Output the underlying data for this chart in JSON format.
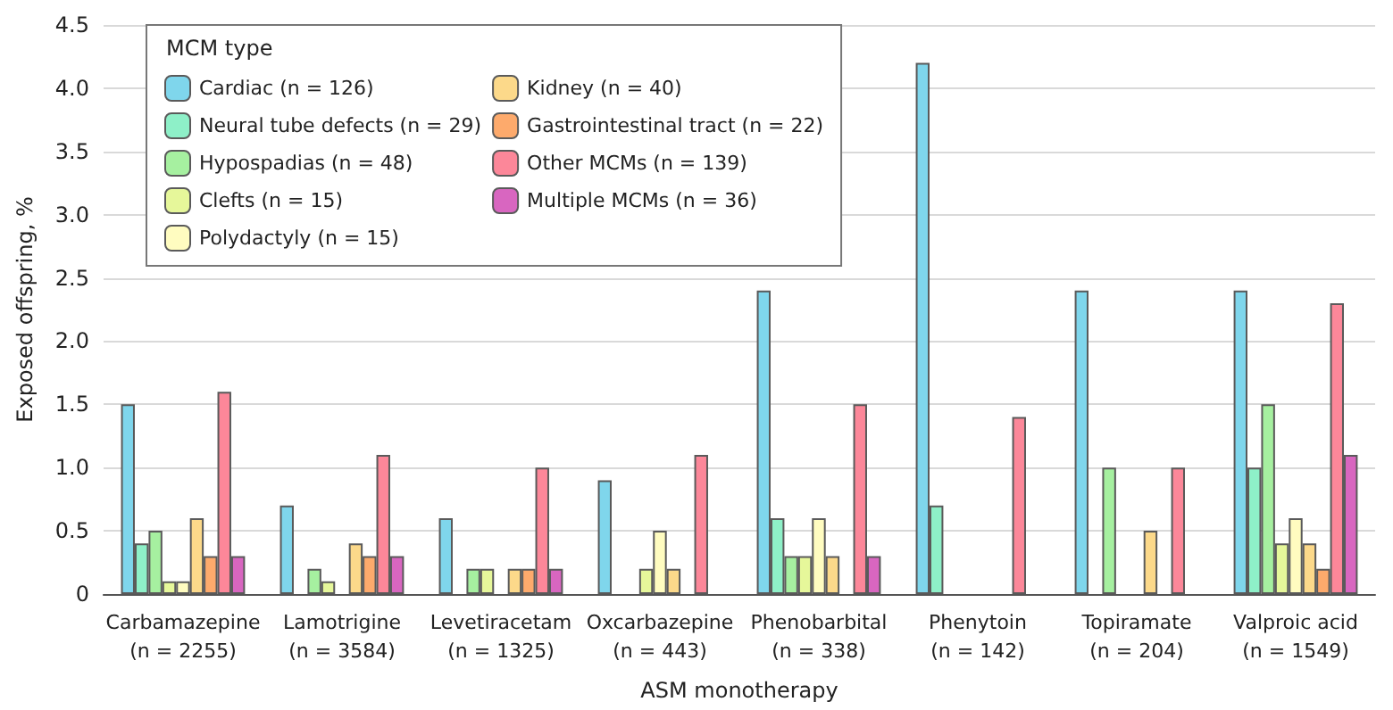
{
  "chart_data": {
    "type": "bar",
    "xlabel": "ASM monotherapy",
    "ylabel": "Exposed offspring, %",
    "legend_title": "MCM type",
    "legend": "top left",
    "grid": "y",
    "categories": [
      "Carbamazepine\n(n = 2255)",
      "Lamotrigine\n(n = 3584)",
      "Levetiracetam\n(n = 1325)",
      "Oxcarbazepine\n(n = 443)",
      "Phenobarbital\n(n = 338)",
      "Phenytoin\n(n = 142)",
      "Topiramate\n(n = 204)",
      "Valproic acid\n(n = 1549)"
    ],
    "ylim": [
      0,
      4.5
    ],
    "yticks": [
      {
        "value": 0,
        "label": "0"
      },
      0.5,
      {
        "value": 1,
        "label": "1.0"
      },
      1.5,
      {
        "value": 2,
        "label": "2.0"
      },
      2.5,
      {
        "value": 3,
        "label": "3.0"
      },
      3.5,
      {
        "value": 4,
        "label": "4.0"
      },
      4.5
    ],
    "series": [
      {
        "name": "Cardiac (n = 126)",
        "color": "#7fd6ec",
        "values": [
          1.5,
          0.7,
          0.6,
          0.9,
          2.4,
          4.2,
          2.4,
          2.4
        ]
      },
      {
        "name": "Neural tube defects (n = 29)",
        "color": "#8ef0c8",
        "values": [
          0.4,
          null,
          null,
          null,
          0.6,
          0.7,
          null,
          1.0
        ]
      },
      {
        "name": "Hypospadias (n = 48)",
        "color": "#a6f0a0",
        "values": [
          0.5,
          0.2,
          0.2,
          null,
          0.3,
          null,
          1.0,
          1.5
        ]
      },
      {
        "name": "Clefts (n = 15)",
        "color": "#e6f79a",
        "values": [
          0.1,
          0.1,
          0.2,
          0.2,
          0.3,
          null,
          null,
          0.4
        ]
      },
      {
        "name": "Polydactyly (n = 15)",
        "color": "#fffcc0",
        "values": [
          0.1,
          null,
          null,
          0.5,
          0.6,
          null,
          null,
          0.6
        ]
      },
      {
        "name": "Kidney (n = 40)",
        "color": "#fcd98a",
        "values": [
          0.6,
          0.4,
          0.2,
          0.2,
          0.3,
          null,
          0.5,
          0.4
        ]
      },
      {
        "name": "Gastrointestinal tract (n = 22)",
        "color": "#fdaa6c",
        "values": [
          0.3,
          0.3,
          0.2,
          null,
          null,
          null,
          null,
          0.2
        ]
      },
      {
        "name": "Other MCMs (n = 139)",
        "color": "#fc8799",
        "values": [
          1.6,
          1.1,
          1.0,
          1.1,
          1.5,
          1.4,
          1.0,
          2.3
        ]
      },
      {
        "name": "Multiple MCMs (n = 36)",
        "color": "#d866c0",
        "values": [
          0.3,
          0.3,
          0.2,
          null,
          0.3,
          null,
          null,
          1.1
        ]
      }
    ]
  }
}
